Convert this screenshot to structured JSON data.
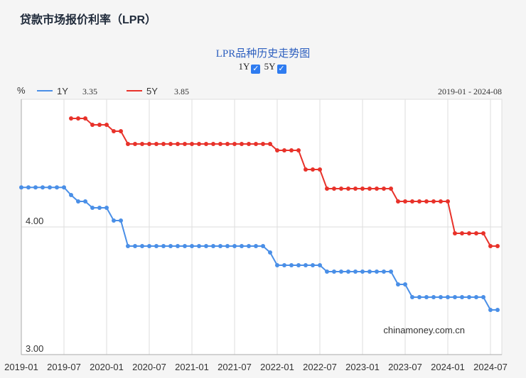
{
  "header": {
    "title": "贷款市场报价利率（LPR）"
  },
  "toggles": [
    {
      "label": "1Y",
      "checked": true
    },
    {
      "label": "5Y",
      "checked": true
    }
  ],
  "chart_data": {
    "type": "line",
    "title": "LPR品种历史走势图",
    "ylabel": "%",
    "date_range": "2019-01 - 2024-08",
    "watermark": "chinamoney.com.cn",
    "ylim": [
      3,
      5
    ],
    "yticks": [
      "3.00",
      "4.00"
    ],
    "xticks": [
      "2019-01",
      "2019-07",
      "2020-01",
      "2020-07",
      "2021-01",
      "2021-07",
      "2022-01",
      "2022-07",
      "2023-01",
      "2023-07",
      "2024-01",
      "2024-07"
    ],
    "x_start": "2019-01",
    "x_end": "2024-08",
    "legend": [
      {
        "name": "1Y",
        "latest": "3.35",
        "color": "#4a8fe7"
      },
      {
        "name": "5Y",
        "latest": "3.85",
        "color": "#e8322a"
      }
    ],
    "series": [
      {
        "name": "1Y",
        "color": "#4a8fe7",
        "values": [
          4.31,
          4.31,
          4.31,
          4.31,
          4.31,
          4.31,
          4.31,
          4.25,
          4.2,
          4.2,
          4.15,
          4.15,
          4.15,
          4.05,
          4.05,
          3.85,
          3.85,
          3.85,
          3.85,
          3.85,
          3.85,
          3.85,
          3.85,
          3.85,
          3.85,
          3.85,
          3.85,
          3.85,
          3.85,
          3.85,
          3.85,
          3.85,
          3.85,
          3.85,
          3.85,
          3.8,
          3.7,
          3.7,
          3.7,
          3.7,
          3.7,
          3.7,
          3.7,
          3.65,
          3.65,
          3.65,
          3.65,
          3.65,
          3.65,
          3.65,
          3.65,
          3.65,
          3.65,
          3.55,
          3.55,
          3.45,
          3.45,
          3.45,
          3.45,
          3.45,
          3.45,
          3.45,
          3.45,
          3.45,
          3.45,
          3.45,
          3.35,
          3.35
        ]
      },
      {
        "name": "5Y",
        "color": "#e8322a",
        "values": [
          null,
          null,
          null,
          null,
          null,
          null,
          null,
          4.85,
          4.85,
          4.85,
          4.8,
          4.8,
          4.8,
          4.75,
          4.75,
          4.65,
          4.65,
          4.65,
          4.65,
          4.65,
          4.65,
          4.65,
          4.65,
          4.65,
          4.65,
          4.65,
          4.65,
          4.65,
          4.65,
          4.65,
          4.65,
          4.65,
          4.65,
          4.65,
          4.65,
          4.65,
          4.6,
          4.6,
          4.6,
          4.6,
          4.45,
          4.45,
          4.45,
          4.3,
          4.3,
          4.3,
          4.3,
          4.3,
          4.3,
          4.3,
          4.3,
          4.3,
          4.3,
          4.2,
          4.2,
          4.2,
          4.2,
          4.2,
          4.2,
          4.2,
          4.2,
          3.95,
          3.95,
          3.95,
          3.95,
          3.95,
          3.85,
          3.85
        ]
      }
    ]
  }
}
